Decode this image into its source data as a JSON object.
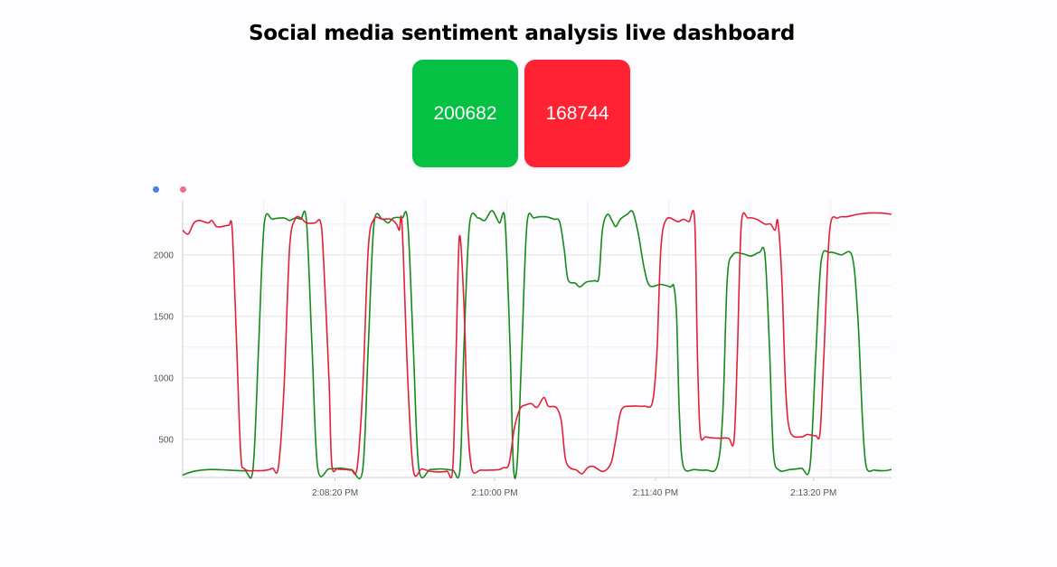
{
  "page": {
    "title": "Social media sentiment analysis live dashboard"
  },
  "cards": {
    "positive": {
      "value": "200682",
      "color": "#04c143"
    },
    "negative": {
      "value": "168744",
      "color": "#ff2232"
    }
  },
  "legend": {
    "dot_colors": [
      "#4a7de6",
      "#f07085"
    ]
  },
  "chart_data": {
    "type": "line",
    "x_axis_type": "time",
    "x_tick_labels": [
      "2:08:20 PM",
      "2:10:00 PM",
      "2:11:40 PM",
      "2:13:20 PM"
    ],
    "y_ticks": [
      500,
      1000,
      1500,
      2000
    ],
    "ylim": [
      190,
      2440
    ],
    "grid": true,
    "x_gridlines": 8,
    "series": [
      {
        "color": "#158a1a",
        "points": [
          [
            0,
            210
          ],
          [
            2,
            240
          ],
          [
            5,
            255
          ],
          [
            8,
            250
          ],
          [
            11,
            245
          ],
          [
            12.5,
            260
          ],
          [
            13.5,
            1250
          ],
          [
            14.5,
            2250
          ],
          [
            16,
            2290
          ],
          [
            18,
            2300
          ],
          [
            19,
            2280
          ],
          [
            20,
            2300
          ],
          [
            21,
            2290
          ],
          [
            22,
            2280
          ],
          [
            23,
            1250
          ],
          [
            24,
            270
          ],
          [
            26,
            260
          ],
          [
            28,
            265
          ],
          [
            30,
            255
          ],
          [
            32,
            250
          ],
          [
            33,
            1250
          ],
          [
            34,
            2250
          ],
          [
            35.5,
            2290
          ],
          [
            36.5,
            2260
          ],
          [
            37.5,
            2300
          ],
          [
            39,
            2300
          ],
          [
            40,
            2270
          ],
          [
            41,
            1250
          ],
          [
            42,
            260
          ],
          [
            44,
            255
          ],
          [
            46,
            260
          ],
          [
            48,
            250
          ],
          [
            49.3,
            260
          ],
          [
            50,
            1250
          ],
          [
            51,
            2250
          ],
          [
            52.5,
            2300
          ],
          [
            53.7,
            2280
          ],
          [
            55,
            2360
          ],
          [
            56.3,
            2260
          ],
          [
            57.3,
            2280
          ],
          [
            58.2,
            1250
          ],
          [
            58.8,
            270
          ],
          [
            59.5,
            330
          ],
          [
            60.3,
            1250
          ],
          [
            61.2,
            2250
          ],
          [
            62.5,
            2300
          ],
          [
            64.5,
            2310
          ],
          [
            66,
            2290
          ],
          [
            67,
            2270
          ],
          [
            67.8,
            2050
          ],
          [
            68.5,
            1800
          ],
          [
            69.8,
            1770
          ],
          [
            70.6,
            1740
          ],
          [
            71.8,
            1780
          ],
          [
            73.2,
            1790
          ],
          [
            74,
            1820
          ],
          [
            74.6,
            2200
          ],
          [
            75.5,
            2330
          ],
          [
            76.4,
            2270
          ],
          [
            77,
            2230
          ],
          [
            77.8,
            2290
          ],
          [
            79,
            2330
          ],
          [
            80,
            2350
          ],
          [
            81,
            2170
          ],
          [
            82,
            1900
          ],
          [
            83,
            1750
          ],
          [
            85,
            1760
          ],
          [
            86.7,
            1740
          ],
          [
            87.3,
            1745
          ],
          [
            87.8,
            1500
          ],
          [
            88.3,
            700
          ],
          [
            89,
            280
          ],
          [
            91,
            255
          ],
          [
            93,
            250
          ],
          [
            95,
            280
          ],
          [
            96,
            700
          ],
          [
            96.8,
            1800
          ],
          [
            97.8,
            2000
          ],
          [
            99.5,
            2010
          ],
          [
            101,
            1990
          ],
          [
            102.5,
            2020
          ],
          [
            103.5,
            2000
          ],
          [
            104.3,
            1250
          ],
          [
            105,
            400
          ],
          [
            106,
            250
          ],
          [
            108,
            255
          ],
          [
            110,
            265
          ],
          [
            111.5,
            280
          ],
          [
            112.5,
            1150
          ],
          [
            113.5,
            1950
          ],
          [
            115,
            2020
          ],
          [
            117,
            2000
          ],
          [
            119,
            1990
          ],
          [
            120,
            1500
          ],
          [
            120.8,
            700
          ],
          [
            121.5,
            280
          ],
          [
            123,
            250
          ],
          [
            124.8,
            245
          ],
          [
            126,
            255
          ]
        ]
      },
      {
        "color": "#e3203a",
        "points": [
          [
            0,
            2200
          ],
          [
            1,
            2170
          ],
          [
            2,
            2260
          ],
          [
            3,
            2280
          ],
          [
            4.5,
            2260
          ],
          [
            5.2,
            2280
          ],
          [
            6,
            2230
          ],
          [
            7,
            2230
          ],
          [
            8.2,
            2240
          ],
          [
            8.8,
            2210
          ],
          [
            9.5,
            1400
          ],
          [
            10.3,
            400
          ],
          [
            11,
            260
          ],
          [
            13,
            245
          ],
          [
            15,
            250
          ],
          [
            16,
            265
          ],
          [
            17,
            270
          ],
          [
            18,
            900
          ],
          [
            19,
            2050
          ],
          [
            20,
            2290
          ],
          [
            21,
            2300
          ],
          [
            22,
            2260
          ],
          [
            23.5,
            2260
          ],
          [
            24.5,
            2270
          ],
          [
            25,
            2000
          ],
          [
            26,
            1000
          ],
          [
            26.5,
            300
          ],
          [
            27.5,
            260
          ],
          [
            29,
            255
          ],
          [
            30,
            250
          ],
          [
            31,
            265
          ],
          [
            32,
            900
          ],
          [
            33,
            2050
          ],
          [
            34,
            2290
          ],
          [
            35.5,
            2290
          ],
          [
            37,
            2290
          ],
          [
            38,
            2250
          ],
          [
            38.5,
            2200
          ],
          [
            39,
            2240
          ],
          [
            40,
            1000
          ],
          [
            41,
            250
          ],
          [
            42.5,
            260
          ],
          [
            44,
            240
          ],
          [
            45.5,
            235
          ],
          [
            47,
            240
          ],
          [
            48,
            260
          ],
          [
            48.6,
            1200
          ],
          [
            49.2,
            2150
          ],
          [
            50,
            1600
          ],
          [
            50.6,
            700
          ],
          [
            51.4,
            260
          ],
          [
            53,
            250
          ],
          [
            55,
            250
          ],
          [
            56.3,
            255
          ],
          [
            57,
            270
          ],
          [
            58,
            300
          ],
          [
            59,
            600
          ],
          [
            60,
            750
          ],
          [
            61,
            780
          ],
          [
            62,
            790
          ],
          [
            63,
            760
          ],
          [
            64.2,
            840
          ],
          [
            65,
            770
          ],
          [
            66.4,
            760
          ],
          [
            67.3,
            650
          ],
          [
            68,
            350
          ],
          [
            68.8,
            270
          ],
          [
            70,
            250
          ],
          [
            71,
            220
          ],
          [
            72,
            270
          ],
          [
            73,
            280
          ],
          [
            74.5,
            240
          ],
          [
            75.5,
            260
          ],
          [
            76.3,
            330
          ],
          [
            77,
            500
          ],
          [
            78,
            740
          ],
          [
            80,
            770
          ],
          [
            82,
            770
          ],
          [
            83.5,
            800
          ],
          [
            84.3,
            1200
          ],
          [
            85,
            2050
          ],
          [
            86,
            2290
          ],
          [
            88,
            2270
          ],
          [
            89,
            2290
          ],
          [
            90,
            2270
          ],
          [
            91,
            2290
          ],
          [
            91.5,
            1200
          ],
          [
            92,
            550
          ],
          [
            93,
            520
          ],
          [
            95,
            510
          ],
          [
            97,
            510
          ],
          [
            98,
            490
          ],
          [
            98.6,
            1200
          ],
          [
            99.3,
            2250
          ],
          [
            100.5,
            2300
          ],
          [
            102,
            2290
          ],
          [
            103.5,
            2250
          ],
          [
            104.5,
            2250
          ],
          [
            105.3,
            2200
          ],
          [
            105.8,
            2270
          ],
          [
            106.5,
            1800
          ],
          [
            107.2,
            900
          ],
          [
            108,
            560
          ],
          [
            110,
            520
          ],
          [
            111,
            540
          ],
          [
            112.5,
            530
          ],
          [
            113.3,
            560
          ],
          [
            114,
            1200
          ],
          [
            115,
            2200
          ],
          [
            116.5,
            2300
          ],
          [
            118,
            2310
          ],
          [
            119,
            2320
          ],
          [
            120,
            2330
          ],
          [
            122,
            2340
          ],
          [
            124,
            2340
          ],
          [
            126,
            2330
          ]
        ]
      }
    ]
  }
}
